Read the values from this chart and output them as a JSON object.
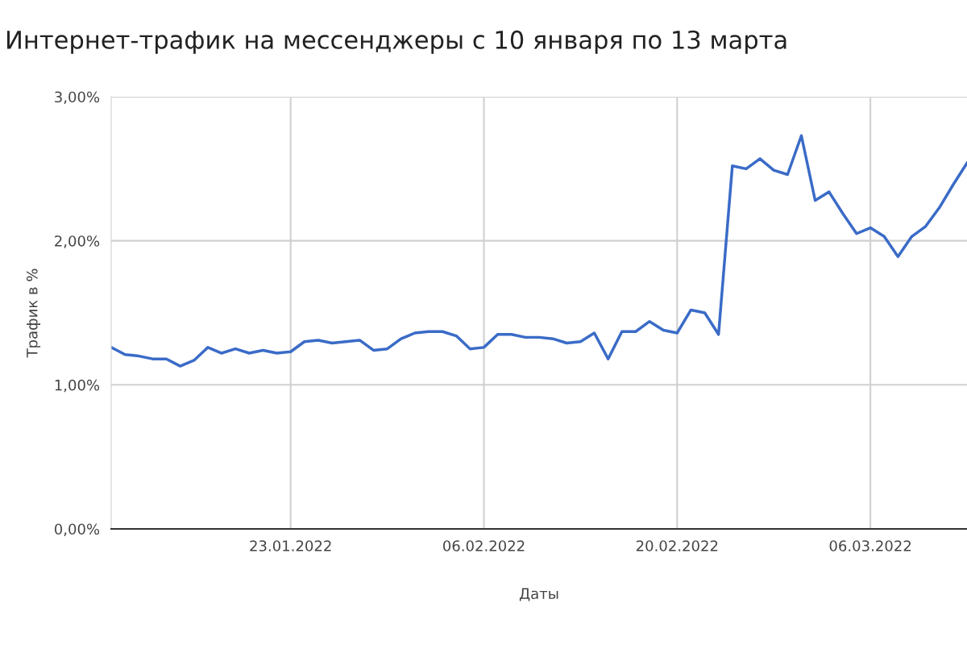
{
  "chart_data": {
    "type": "line",
    "title": "Интернет-трафик на мессенджеры с 10 января по 13 марта",
    "xlabel": "Даты",
    "ylabel": "Трафик в %",
    "x": [
      "2022-01-10",
      "2022-01-11",
      "2022-01-12",
      "2022-01-13",
      "2022-01-14",
      "2022-01-15",
      "2022-01-16",
      "2022-01-17",
      "2022-01-18",
      "2022-01-19",
      "2022-01-20",
      "2022-01-21",
      "2022-01-22",
      "2022-01-23",
      "2022-01-24",
      "2022-01-25",
      "2022-01-26",
      "2022-01-27",
      "2022-01-28",
      "2022-01-29",
      "2022-01-30",
      "2022-01-31",
      "2022-02-01",
      "2022-02-02",
      "2022-02-03",
      "2022-02-04",
      "2022-02-05",
      "2022-02-06",
      "2022-02-07",
      "2022-02-08",
      "2022-02-09",
      "2022-02-10",
      "2022-02-11",
      "2022-02-12",
      "2022-02-13",
      "2022-02-14",
      "2022-02-15",
      "2022-02-16",
      "2022-02-17",
      "2022-02-18",
      "2022-02-19",
      "2022-02-20",
      "2022-02-21",
      "2022-02-22",
      "2022-02-23",
      "2022-02-24",
      "2022-02-25",
      "2022-02-26",
      "2022-02-27",
      "2022-02-28",
      "2022-03-01",
      "2022-03-02",
      "2022-03-03",
      "2022-03-04",
      "2022-03-05",
      "2022-03-06",
      "2022-03-07",
      "2022-03-08",
      "2022-03-09",
      "2022-03-10",
      "2022-03-11",
      "2022-03-12",
      "2022-03-13"
    ],
    "series": [
      {
        "color": "#3a6bc7",
        "values": [
          1.26,
          1.21,
          1.2,
          1.18,
          1.18,
          1.13,
          1.17,
          1.26,
          1.22,
          1.25,
          1.22,
          1.24,
          1.22,
          1.23,
          1.3,
          1.31,
          1.29,
          1.3,
          1.31,
          1.24,
          1.25,
          1.32,
          1.36,
          1.37,
          1.37,
          1.34,
          1.25,
          1.26,
          1.35,
          1.35,
          1.33,
          1.33,
          1.32,
          1.29,
          1.3,
          1.36,
          1.18,
          1.37,
          1.37,
          1.44,
          1.38,
          1.36,
          1.52,
          1.5,
          1.35,
          2.52,
          2.5,
          2.57,
          2.49,
          2.46,
          2.73,
          2.28,
          2.34,
          2.19,
          2.05,
          2.09,
          2.03,
          1.89,
          2.03,
          2.1,
          2.23,
          2.39,
          2.54
        ]
      }
    ],
    "xlim": [
      "2022-01-10",
      "2022-03-13"
    ],
    "xticks": [
      {
        "value": "2022-01-23",
        "label": "23.01.2022"
      },
      {
        "value": "2022-02-06",
        "label": "06.02.2022"
      },
      {
        "value": "2022-02-20",
        "label": "20.02.2022"
      },
      {
        "value": "2022-03-06",
        "label": "06.03.2022"
      }
    ],
    "ylim": [
      0,
      3
    ],
    "yticks": [
      {
        "value": 0,
        "label": "0,00%"
      },
      {
        "value": 1,
        "label": "1,00%"
      },
      {
        "value": 2,
        "label": "2,00%"
      },
      {
        "value": 3,
        "label": "3,00%"
      }
    ],
    "grid": true,
    "legend": false,
    "marker": "none",
    "line_style": "solid"
  }
}
